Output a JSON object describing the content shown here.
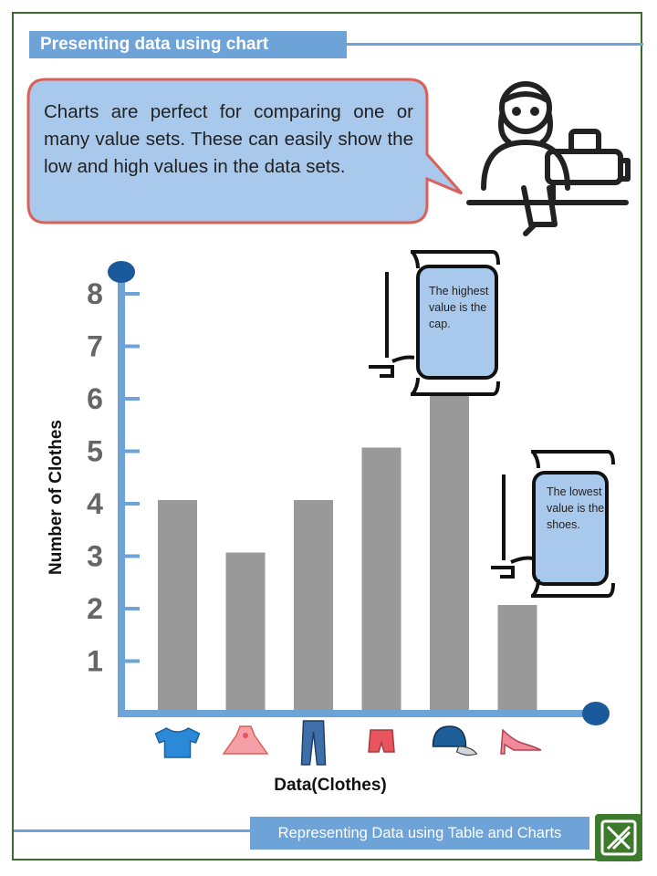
{
  "header": {
    "title": "Presenting data using chart"
  },
  "intro": {
    "text": "Charts are perfect for comparing one or many value sets. These can easily show the low and high values in the data sets."
  },
  "notes": {
    "highest": "The highest value is the cap.",
    "lowest": "The lowest value is the shoes."
  },
  "footer": {
    "label": "Representing Data using Table and Charts"
  },
  "colors": {
    "accent": "#6ea3d8",
    "axis": "#6ea3d8",
    "bar": "#999999",
    "border": "#3d6b2c",
    "bubble_fill": "#a9c9ec",
    "bubble_stroke": "#d9615a"
  },
  "chart_data": {
    "type": "bar",
    "categories": [
      "t-shirt",
      "dress",
      "jeans",
      "shorts",
      "cap",
      "shoes"
    ],
    "values": [
      4,
      3,
      4,
      5,
      6,
      2
    ],
    "yticks": [
      "1",
      "2",
      "3",
      "4",
      "5",
      "6",
      "7",
      "8"
    ],
    "ylim": [
      0,
      8
    ],
    "ylabel": "Number of Clothes",
    "xlabel": "Data(Clothes)",
    "grid": false
  }
}
